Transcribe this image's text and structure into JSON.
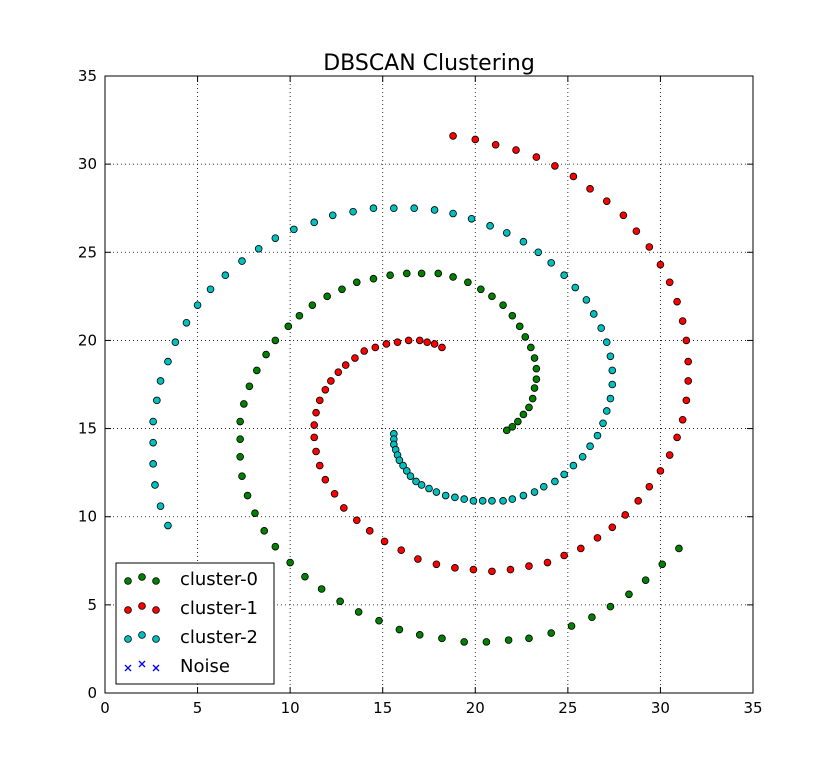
{
  "chart_data": {
    "type": "scatter",
    "title": "DBSCAN Clustering",
    "xlabel": "",
    "ylabel": "",
    "xlim": [
      0,
      35
    ],
    "ylim": [
      0,
      35
    ],
    "x_ticks": [
      0,
      5,
      10,
      15,
      20,
      25,
      30,
      35
    ],
    "y_ticks": [
      0,
      5,
      10,
      15,
      20,
      25,
      30,
      35
    ],
    "grid": true,
    "legend_position": "bottom-left",
    "series": [
      {
        "name": "cluster-0",
        "color": "#008000",
        "marker": "circle",
        "points": [
          [
            21.7,
            14.9
          ],
          [
            22.0,
            15.1
          ],
          [
            22.3,
            15.4
          ],
          [
            22.6,
            15.8
          ],
          [
            22.9,
            16.2
          ],
          [
            23.1,
            16.7
          ],
          [
            23.2,
            17.3
          ],
          [
            23.3,
            17.8
          ],
          [
            23.3,
            18.4
          ],
          [
            23.2,
            19.0
          ],
          [
            23.0,
            19.6
          ],
          [
            22.7,
            20.2
          ],
          [
            22.4,
            20.8
          ],
          [
            22.0,
            21.4
          ],
          [
            21.5,
            22.0
          ],
          [
            20.9,
            22.5
          ],
          [
            20.3,
            22.9
          ],
          [
            19.6,
            23.3
          ],
          [
            18.8,
            23.6
          ],
          [
            18.0,
            23.8
          ],
          [
            17.1,
            23.8
          ],
          [
            16.3,
            23.8
          ],
          [
            15.4,
            23.7
          ],
          [
            14.5,
            23.5
          ],
          [
            13.6,
            23.3
          ],
          [
            12.8,
            22.9
          ],
          [
            12.0,
            22.5
          ],
          [
            11.2,
            22.0
          ],
          [
            10.5,
            21.4
          ],
          [
            9.9,
            20.8
          ],
          [
            9.2,
            20.0
          ],
          [
            8.7,
            19.2
          ],
          [
            8.2,
            18.3
          ],
          [
            7.8,
            17.4
          ],
          [
            7.5,
            16.4
          ],
          [
            7.3,
            15.4
          ],
          [
            7.3,
            14.4
          ],
          [
            7.3,
            13.4
          ],
          [
            7.4,
            12.3
          ],
          [
            7.7,
            11.2
          ],
          [
            8.1,
            10.2
          ],
          [
            8.6,
            9.2
          ],
          [
            9.2,
            8.3
          ],
          [
            10.0,
            7.4
          ],
          [
            10.8,
            6.6
          ],
          [
            11.7,
            5.9
          ],
          [
            12.7,
            5.2
          ],
          [
            13.7,
            4.6
          ],
          [
            14.8,
            4.1
          ],
          [
            15.9,
            3.6
          ],
          [
            17.0,
            3.3
          ],
          [
            18.2,
            3.1
          ],
          [
            19.4,
            2.9
          ],
          [
            20.6,
            2.9
          ],
          [
            21.8,
            3.0
          ],
          [
            22.9,
            3.1
          ],
          [
            24.1,
            3.4
          ],
          [
            25.2,
            3.8
          ],
          [
            26.3,
            4.3
          ],
          [
            27.3,
            4.9
          ],
          [
            28.3,
            5.6
          ],
          [
            29.2,
            6.4
          ],
          [
            30.1,
            7.3
          ],
          [
            31.0,
            8.2
          ]
        ]
      },
      {
        "name": "cluster-1",
        "color": "#ff0000",
        "marker": "circle",
        "points": [
          [
            18.2,
            19.6
          ],
          [
            17.8,
            19.8
          ],
          [
            17.4,
            19.9
          ],
          [
            17.0,
            20.0
          ],
          [
            16.4,
            20.0
          ],
          [
            15.8,
            19.9
          ],
          [
            15.2,
            19.8
          ],
          [
            14.6,
            19.6
          ],
          [
            14.0,
            19.4
          ],
          [
            13.5,
            19.0
          ],
          [
            13.0,
            18.6
          ],
          [
            12.6,
            18.2
          ],
          [
            12.2,
            17.7
          ],
          [
            11.9,
            17.2
          ],
          [
            11.6,
            16.6
          ],
          [
            11.4,
            15.9
          ],
          [
            11.3,
            15.2
          ],
          [
            11.3,
            14.5
          ],
          [
            11.4,
            13.7
          ],
          [
            11.6,
            12.9
          ],
          [
            11.9,
            12.1
          ],
          [
            12.4,
            11.3
          ],
          [
            12.9,
            10.5
          ],
          [
            13.6,
            9.8
          ],
          [
            14.3,
            9.2
          ],
          [
            15.1,
            8.6
          ],
          [
            16.0,
            8.1
          ],
          [
            16.9,
            7.6
          ],
          [
            17.9,
            7.3
          ],
          [
            18.9,
            7.1
          ],
          [
            19.9,
            7.0
          ],
          [
            20.9,
            6.9
          ],
          [
            21.9,
            7.0
          ],
          [
            22.9,
            7.2
          ],
          [
            23.9,
            7.4
          ],
          [
            24.8,
            7.8
          ],
          [
            25.7,
            8.2
          ],
          [
            26.6,
            8.8
          ],
          [
            27.4,
            9.4
          ],
          [
            28.1,
            10.1
          ],
          [
            28.8,
            10.9
          ],
          [
            29.4,
            11.7
          ],
          [
            30.0,
            12.6
          ],
          [
            30.5,
            13.5
          ],
          [
            30.9,
            14.5
          ],
          [
            31.2,
            15.5
          ],
          [
            31.4,
            16.6
          ],
          [
            31.5,
            17.7
          ],
          [
            31.5,
            18.8
          ],
          [
            31.4,
            20.0
          ],
          [
            31.2,
            21.1
          ],
          [
            30.9,
            22.2
          ],
          [
            30.5,
            23.3
          ],
          [
            30.0,
            24.3
          ],
          [
            29.4,
            25.3
          ],
          [
            28.7,
            26.2
          ],
          [
            28.0,
            27.1
          ],
          [
            27.1,
            27.9
          ],
          [
            26.2,
            28.6
          ],
          [
            25.3,
            29.3
          ],
          [
            24.3,
            29.9
          ],
          [
            23.3,
            30.4
          ],
          [
            22.2,
            30.8
          ],
          [
            21.1,
            31.1
          ],
          [
            20.0,
            31.4
          ],
          [
            18.8,
            31.6
          ]
        ]
      },
      {
        "name": "cluster-2",
        "color": "#00bfbf",
        "marker": "circle",
        "points": [
          [
            15.6,
            14.7
          ],
          [
            15.6,
            14.4
          ],
          [
            15.6,
            14.1
          ],
          [
            15.7,
            13.8
          ],
          [
            15.8,
            13.5
          ],
          [
            15.9,
            13.2
          ],
          [
            16.1,
            12.9
          ],
          [
            16.3,
            12.6
          ],
          [
            16.5,
            12.3
          ],
          [
            16.8,
            12.0
          ],
          [
            17.1,
            11.8
          ],
          [
            17.5,
            11.6
          ],
          [
            17.9,
            11.4
          ],
          [
            18.4,
            11.2
          ],
          [
            18.9,
            11.1
          ],
          [
            19.4,
            11.0
          ],
          [
            19.9,
            10.9
          ],
          [
            20.4,
            10.9
          ],
          [
            20.9,
            10.9
          ],
          [
            21.5,
            10.9
          ],
          [
            22.0,
            11.0
          ],
          [
            22.6,
            11.2
          ],
          [
            23.2,
            11.4
          ],
          [
            23.7,
            11.7
          ],
          [
            24.3,
            12.0
          ],
          [
            24.8,
            12.4
          ],
          [
            25.3,
            12.9
          ],
          [
            25.8,
            13.4
          ],
          [
            26.2,
            14.0
          ],
          [
            26.6,
            14.6
          ],
          [
            26.9,
            15.3
          ],
          [
            27.1,
            16.0
          ],
          [
            27.3,
            16.7
          ],
          [
            27.4,
            17.5
          ],
          [
            27.4,
            18.3
          ],
          [
            27.3,
            19.1
          ],
          [
            27.1,
            19.9
          ],
          [
            26.8,
            20.7
          ],
          [
            26.4,
            21.5
          ],
          [
            26.0,
            22.3
          ],
          [
            25.4,
            23.0
          ],
          [
            24.8,
            23.7
          ],
          [
            24.1,
            24.4
          ],
          [
            23.4,
            25.0
          ],
          [
            22.6,
            25.6
          ],
          [
            21.7,
            26.1
          ],
          [
            20.8,
            26.5
          ],
          [
            19.8,
            26.9
          ],
          [
            18.8,
            27.2
          ],
          [
            17.8,
            27.4
          ],
          [
            16.7,
            27.5
          ],
          [
            15.6,
            27.5
          ],
          [
            14.5,
            27.5
          ],
          [
            13.4,
            27.3
          ],
          [
            12.3,
            27.1
          ],
          [
            11.3,
            26.7
          ],
          [
            10.2,
            26.3
          ],
          [
            9.2,
            25.8
          ],
          [
            8.3,
            25.2
          ],
          [
            7.4,
            24.5
          ],
          [
            6.5,
            23.7
          ],
          [
            5.7,
            22.9
          ],
          [
            5.0,
            22.0
          ],
          [
            4.4,
            21.0
          ],
          [
            3.8,
            19.9
          ],
          [
            3.4,
            18.8
          ],
          [
            3.0,
            17.7
          ],
          [
            2.8,
            16.6
          ],
          [
            2.6,
            15.4
          ],
          [
            2.6,
            14.2
          ],
          [
            2.6,
            13.0
          ],
          [
            2.7,
            11.8
          ],
          [
            3.0,
            10.6
          ],
          [
            3.4,
            9.5
          ]
        ]
      },
      {
        "name": "Noise",
        "color": "#0000ff",
        "marker": "x",
        "points": []
      }
    ]
  }
}
